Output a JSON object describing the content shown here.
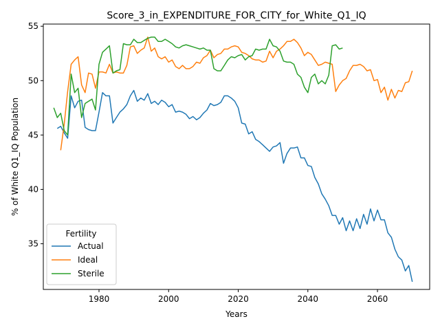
{
  "chart_data": {
    "type": "line",
    "title": "Score_3_in_EXPENDITURE_FOR_CITY_for_White_Q1_IQ",
    "xlabel": "Years",
    "ylabel": "% of White Q1_IQ Population",
    "xlim": [
      1964,
      2075
    ],
    "ylim": [
      30.8,
      55.2
    ],
    "xticks": [
      1980,
      2000,
      2020,
      2040,
      2060
    ],
    "yticks": [
      35,
      40,
      45,
      50,
      55
    ],
    "grid": false,
    "legend": {
      "title": "Fertility",
      "placement": "lower-left"
    },
    "series": [
      {
        "name": "Actual",
        "color": "#1f77b4",
        "x": [
          1968,
          1969,
          1970,
          1971,
          1972,
          1973,
          1974,
          1975,
          1976,
          1977,
          1978,
          1979,
          1980,
          1981,
          1982,
          1983,
          1984,
          1985,
          1986,
          1987,
          1988,
          1989,
          1990,
          1991,
          1992,
          1993,
          1994,
          1995,
          1996,
          1997,
          1998,
          1999,
          2000,
          2001,
          2002,
          2003,
          2004,
          2005,
          2006,
          2007,
          2008,
          2009,
          2010,
          2011,
          2012,
          2013,
          2014,
          2015,
          2016,
          2017,
          2018,
          2019,
          2020,
          2021,
          2022,
          2023,
          2024,
          2025,
          2026,
          2027,
          2028,
          2029,
          2030,
          2031,
          2032,
          2033,
          2034,
          2035,
          2036,
          2037,
          2038,
          2039,
          2040,
          2041,
          2042,
          2043,
          2044,
          2045,
          2046,
          2047,
          2048,
          2049,
          2050,
          2051,
          2052,
          2053,
          2054,
          2055,
          2056,
          2057,
          2058,
          2059,
          2060,
          2061,
          2062,
          2063,
          2064,
          2065,
          2066,
          2067,
          2068,
          2069,
          2070
        ],
        "y": [
          45.6,
          45.8,
          45.2,
          44.7,
          48.6,
          47.5,
          48.1,
          48.2,
          45.7,
          45.5,
          45.4,
          45.4,
          47.1,
          48.9,
          48.6,
          48.6,
          46.1,
          46.6,
          47.1,
          47.4,
          47.8,
          48.6,
          49.1,
          48.1,
          48.4,
          48.2,
          48.8,
          47.9,
          48.1,
          47.8,
          48.2,
          48.0,
          47.6,
          47.8,
          47.1,
          47.2,
          47.1,
          46.9,
          46.5,
          46.7,
          46.4,
          46.6,
          47.0,
          47.3,
          47.9,
          47.7,
          47.8,
          48.0,
          48.6,
          48.6,
          48.4,
          48.1,
          47.5,
          46.1,
          46.0,
          45.1,
          45.3,
          44.6,
          44.4,
          44.1,
          43.8,
          43.5,
          43.9,
          44.0,
          44.3,
          42.4,
          43.3,
          43.8,
          43.8,
          43.9,
          42.9,
          42.9,
          42.2,
          42.1,
          41.1,
          40.5,
          39.6,
          39.1,
          38.5,
          37.6,
          37.6,
          36.8,
          37.4,
          36.2,
          37.1,
          36.2,
          37.3,
          36.4,
          37.7,
          36.8,
          38.2,
          37.1,
          38.1,
          37.2,
          37.2,
          36.0,
          35.6,
          34.5,
          33.8,
          33.5,
          32.5,
          33.0,
          31.5
        ]
      },
      {
        "name": "Ideal",
        "color": "#ff7f0e",
        "x": [
          1969,
          1970,
          1971,
          1972,
          1973,
          1974,
          1975,
          1976,
          1977,
          1978,
          1979,
          1980,
          1981,
          1982,
          1983,
          1984,
          1985,
          1986,
          1987,
          1988,
          1989,
          1990,
          1991,
          1992,
          1993,
          1994,
          1995,
          1996,
          1997,
          1998,
          1999,
          2000,
          2001,
          2002,
          2003,
          2004,
          2005,
          2006,
          2007,
          2008,
          2009,
          2010,
          2011,
          2012,
          2013,
          2014,
          2015,
          2016,
          2017,
          2018,
          2019,
          2020,
          2021,
          2022,
          2023,
          2024,
          2025,
          2026,
          2027,
          2028,
          2029,
          2030,
          2031,
          2032,
          2033,
          2034,
          2035,
          2036,
          2037,
          2038,
          2039,
          2040,
          2041,
          2042,
          2043,
          2044,
          2045,
          2046,
          2047,
          2048,
          2049,
          2050,
          2051,
          2052,
          2053,
          2054,
          2055,
          2056,
          2057,
          2058,
          2059,
          2060,
          2061,
          2062,
          2063,
          2064,
          2065,
          2066,
          2067,
          2068,
          2069,
          2070
        ],
        "y": [
          43.6,
          46.0,
          49.0,
          51.5,
          51.9,
          52.2,
          49.6,
          48.9,
          50.7,
          50.6,
          49.3,
          50.8,
          50.8,
          50.7,
          51.5,
          50.7,
          50.8,
          50.7,
          50.7,
          51.4,
          53.1,
          53.2,
          52.5,
          52.8,
          53.0,
          54.0,
          52.7,
          53.0,
          52.2,
          52.0,
          52.2,
          51.7,
          51.9,
          51.3,
          51.1,
          51.4,
          51.1,
          51.1,
          51.3,
          51.7,
          51.6,
          52.1,
          52.3,
          52.8,
          52.1,
          52.4,
          52.5,
          52.9,
          52.9,
          53.1,
          53.2,
          53.1,
          52.6,
          52.5,
          52.3,
          52.0,
          51.9,
          51.9,
          51.7,
          51.8,
          52.7,
          52.1,
          52.7,
          52.9,
          53.2,
          53.6,
          53.6,
          53.8,
          53.5,
          53.0,
          52.3,
          52.6,
          52.4,
          51.9,
          51.4,
          51.5,
          51.7,
          51.6,
          51.5,
          49.0,
          49.6,
          50.0,
          50.2,
          50.9,
          51.4,
          51.4,
          51.5,
          51.3,
          50.9,
          51.0,
          50.0,
          50.1,
          48.9,
          49.4,
          48.2,
          49.2,
          48.4,
          49.1,
          49.0,
          49.8,
          49.9,
          50.9
        ]
      },
      {
        "name": "Sterile",
        "color": "#2ca02c",
        "x": [
          1967,
          1968,
          1969,
          1970,
          1971,
          1972,
          1973,
          1974,
          1975,
          1976,
          1977,
          1978,
          1979,
          1980,
          1981,
          1982,
          1983,
          1984,
          1985,
          1986,
          1987,
          1988,
          1989,
          1990,
          1991,
          1992,
          1993,
          1994,
          1995,
          1996,
          1997,
          1998,
          1999,
          2000,
          2001,
          2002,
          2003,
          2004,
          2005,
          2006,
          2007,
          2008,
          2009,
          2010,
          2011,
          2012,
          2013,
          2014,
          2015,
          2016,
          2017,
          2018,
          2019,
          2020,
          2021,
          2022,
          2023,
          2024,
          2025,
          2026,
          2027,
          2028,
          2029,
          2030,
          2031,
          2032,
          2033,
          2034,
          2035,
          2036,
          2037,
          2038,
          2039,
          2040,
          2041,
          2042,
          2043,
          2044,
          2045,
          2046,
          2047,
          2048,
          2049,
          2050
        ],
        "y": [
          47.5,
          46.6,
          47.0,
          45.4,
          45.0,
          50.6,
          48.9,
          49.3,
          46.6,
          47.9,
          48.1,
          48.3,
          47.3,
          51.5,
          52.6,
          52.9,
          53.2,
          50.7,
          50.9,
          51.0,
          53.4,
          53.3,
          53.3,
          53.8,
          53.5,
          53.5,
          53.7,
          53.9,
          54.0,
          54.0,
          53.6,
          53.6,
          53.8,
          53.6,
          53.4,
          53.1,
          53.0,
          53.2,
          53.3,
          53.2,
          53.1,
          53.0,
          52.9,
          53.0,
          52.8,
          52.8,
          51.1,
          50.9,
          50.9,
          51.4,
          51.9,
          52.2,
          52.1,
          52.3,
          52.4,
          51.9,
          52.2,
          52.3,
          52.9,
          52.8,
          52.9,
          52.9,
          53.8,
          53.2,
          53.1,
          52.7,
          51.8,
          51.7,
          51.7,
          51.5,
          50.6,
          50.3,
          49.4,
          48.9,
          50.3,
          50.6,
          49.7,
          50.0,
          49.7,
          50.5,
          53.2,
          53.3,
          52.9,
          53.0
        ]
      }
    ]
  }
}
